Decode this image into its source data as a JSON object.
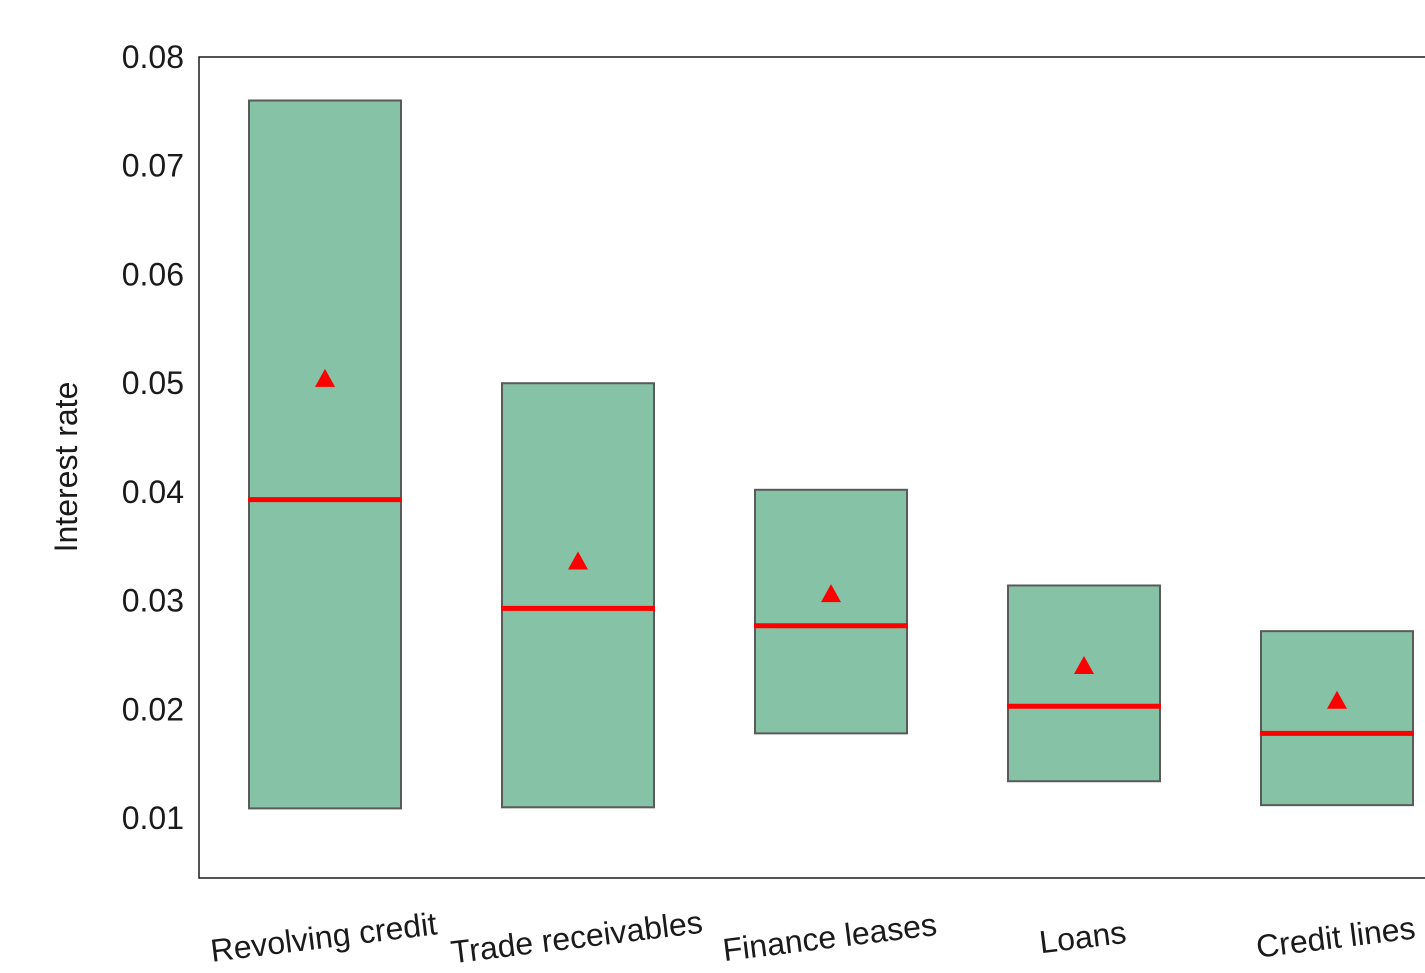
{
  "chart_data": {
    "type": "box",
    "xlabel": "",
    "ylabel": "Interest rate",
    "ylim": [
      0.0045,
      0.08
    ],
    "yticks": [
      "0.01",
      "0.02",
      "0.03",
      "0.04",
      "0.05",
      "0.06",
      "0.07",
      "0.08"
    ],
    "categories": [
      "Revolving credit",
      "Trade receivables",
      "Finance leases",
      "Loans",
      "Credit lines"
    ],
    "boxes": [
      {
        "low": 0.0109,
        "high": 0.076,
        "median": 0.0393,
        "mean": 0.0504
      },
      {
        "low": 0.011,
        "high": 0.05,
        "median": 0.0293,
        "mean": 0.0336
      },
      {
        "low": 0.0178,
        "high": 0.0402,
        "median": 0.0277,
        "mean": 0.0306
      },
      {
        "low": 0.0134,
        "high": 0.0314,
        "median": 0.0203,
        "mean": 0.024
      },
      {
        "low": 0.0112,
        "high": 0.0272,
        "median": 0.0178,
        "mean": 0.0208
      }
    ],
    "grid": false,
    "colors": {
      "box_fill": "#86c2a6",
      "box_edge": "#5a5a5a",
      "median": "#ff0000",
      "mean_marker": "#ff0000",
      "axis": "#1a1a1a"
    }
  }
}
